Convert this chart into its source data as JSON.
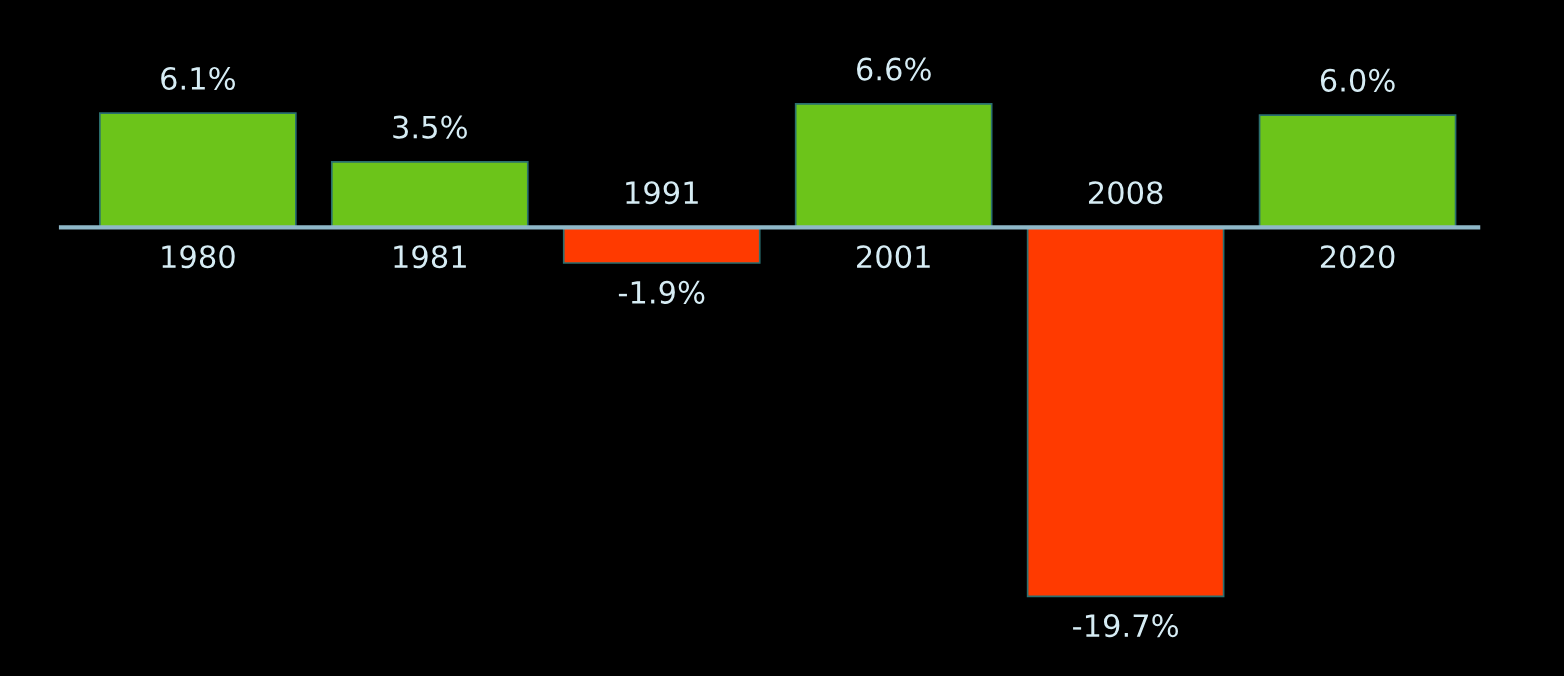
{
  "chart_data": {
    "type": "bar",
    "categories": [
      "1980",
      "1981",
      "1991",
      "2001",
      "2008",
      "2020"
    ],
    "values": [
      6.1,
      3.5,
      -1.9,
      6.6,
      -19.7,
      6.0
    ],
    "colors": [
      "#6cc41a",
      "#6cc41a",
      "#ff3a00",
      "#6cc41a",
      "#ff3a00",
      "#6cc41a"
    ],
    "value_labels": [
      "6.1%",
      "3.5%",
      "-1.9%",
      "6.6%",
      "-19.7%",
      "6.0%"
    ],
    "tick_labels": false
  }
}
